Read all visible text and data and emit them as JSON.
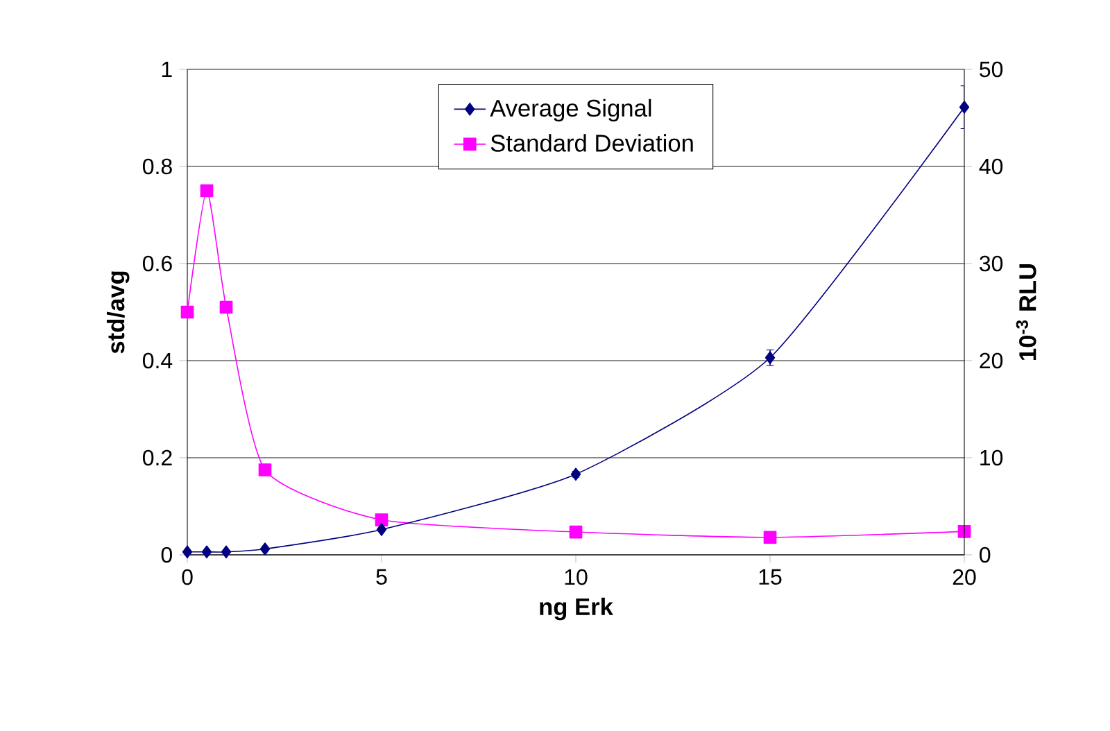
{
  "chart_data": {
    "type": "line",
    "xlabel": "ng Erk",
    "ylabel": "std/avg",
    "y2label": "10$^{-3}$ RLU",
    "x": [
      0,
      0.5,
      1,
      2,
      5,
      10,
      15,
      20
    ],
    "series": [
      {
        "name": "Average Signal",
        "color": "#000080",
        "axis": "y2",
        "marker": "diamond",
        "values": [
          0.3,
          0.3,
          0.3,
          0.6,
          2.6,
          8.3,
          20.3,
          46.1
        ],
        "errors": [
          null,
          null,
          null,
          null,
          null,
          0.3,
          0.8,
          2.2
        ]
      },
      {
        "name": "Standard Deviation",
        "color": "#ff00ff",
        "marker": "square",
        "values": [
          0.5,
          0.75,
          0.51,
          0.175,
          0.072,
          0.047,
          0.036,
          0.048
        ]
      }
    ],
    "xlim": [
      0,
      20
    ],
    "xticks": [
      0,
      5,
      10,
      15,
      20
    ],
    "ylim": [
      0,
      1
    ],
    "yticks": [
      0,
      0.2,
      0.4,
      0.6,
      0.8,
      1
    ],
    "y2lim": [
      0,
      50
    ],
    "y2ticks": [
      0,
      10,
      20,
      30,
      40,
      50
    ],
    "grid": "y",
    "legend": "top"
  }
}
